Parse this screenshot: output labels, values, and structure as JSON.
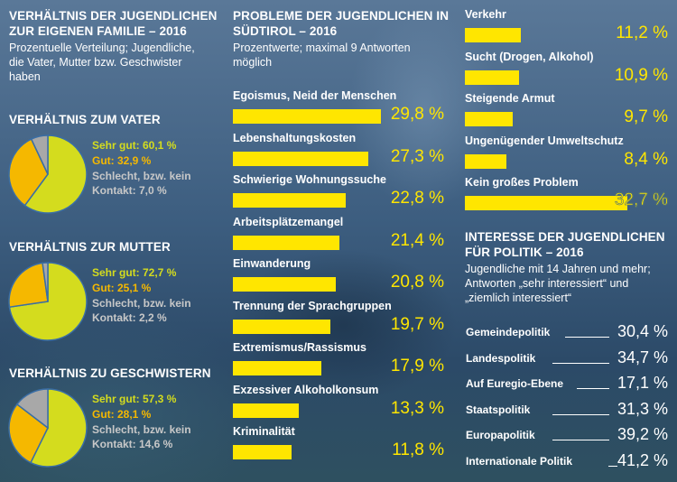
{
  "left": {
    "title": "VERHÄLTNIS DER JUGENDLICHEN ZUR EIGENEN FAMILIE – 2016",
    "subtitle": "Prozentuelle Verteilung; Jugendliche, die Vater, Mutter bzw. Geschwister haben"
  },
  "middle": {
    "title": "PROBLEME DER JUGENDLICHEN IN SÜDTIROL – 2016",
    "subtitle": "Prozentwerte; maximal 9 Antworten möglich"
  },
  "politik": {
    "title": "INTERESSE DER JUGENDLICHEN FÜR POLITIK – 2016",
    "subtitle": "Jugendliche mit 14 Jahren und mehr; Antworten „sehr interessiert“ und „ziemlich interessiert“"
  },
  "colors": {
    "yellow": "#ffe600",
    "pie_sehr_gut": "#d4dc1e",
    "pie_gut": "#f5b800",
    "pie_schlecht": "#a8a8a8",
    "pie_border": "#3a6ea5"
  },
  "chart_data": [
    {
      "type": "pie",
      "title": "VERHÄLTNIS ZUM VATER",
      "slices": [
        {
          "label": "Sehr gut: 60,1 %",
          "value": 60.1,
          "color": "#d4dc1e"
        },
        {
          "label": "Gut: 32,9 %",
          "value": 32.9,
          "color": "#f5b800"
        },
        {
          "label": "Schlecht, bzw. kein Kontakt: 7,0 %",
          "value": 7.0,
          "color": "#a8a8a8"
        }
      ]
    },
    {
      "type": "pie",
      "title": "VERHÄLTNIS ZUR MUTTER",
      "slices": [
        {
          "label": "Sehr gut: 72,7 %",
          "value": 72.7,
          "color": "#d4dc1e"
        },
        {
          "label": "Gut: 25,1 %",
          "value": 25.1,
          "color": "#f5b800"
        },
        {
          "label": "Schlecht, bzw. kein Kontakt: 2,2 %",
          "value": 2.2,
          "color": "#a8a8a8"
        }
      ]
    },
    {
      "type": "pie",
      "title": "VERHÄLTNIS ZU GESCHWISTERN",
      "slices": [
        {
          "label": "Sehr gut: 57,3 %",
          "value": 57.3,
          "color": "#d4dc1e"
        },
        {
          "label": "Gut: 28,1 %",
          "value": 28.1,
          "color": "#f5b800"
        },
        {
          "label": "Schlecht, bzw. kein Kontakt: 14,6 %",
          "value": 14.6,
          "color": "#a8a8a8"
        }
      ]
    },
    {
      "type": "bar",
      "title": "PROBLEME DER JUGENDLICHEN IN SÜDTIROL – 2016",
      "categories": [
        "Egoismus, Neid der Menschen",
        "Lebenshaltungskosten",
        "Schwierige Wohnungssuche",
        "Arbeitsplätzemangel",
        "Einwanderung",
        "Trennung der Sprachgruppen",
        "Extremismus/Rassismus",
        "Exzessiver Alkoholkonsum",
        "Kriminalität",
        "Verkehr",
        "Sucht (Drogen, Alkohol)",
        "Steigende Armut",
        "Ungenügender Umweltschutz",
        "Kein großes Problem"
      ],
      "values": [
        29.8,
        27.3,
        22.8,
        21.4,
        20.8,
        19.7,
        17.9,
        13.3,
        11.8,
        11.2,
        10.9,
        9.7,
        8.4,
        32.7
      ],
      "value_labels": [
        "29,8 %",
        "27,3 %",
        "22,8 %",
        "21,4 %",
        "20,8 %",
        "19,7 %",
        "17,9 %",
        "13,3 %",
        "11,8 %",
        "11,2 %",
        "10,9 %",
        "9,7 %",
        "8,4 %",
        "32,7 %"
      ]
    },
    {
      "type": "table",
      "title": "INTERESSE DER JUGENDLICHEN FÜR POLITIK – 2016",
      "categories": [
        "Gemeindepolitik",
        "Landespolitik",
        "Auf Euregio-Ebene",
        "Staatspolitik",
        "Europapolitik",
        "Internationale Politik"
      ],
      "values": [
        30.4,
        34.7,
        17.1,
        31.3,
        39.2,
        41.2
      ],
      "value_labels": [
        "30,4 %",
        "34,7 %",
        "17,1 %",
        "31,3 %",
        "39,2 %",
        "41,2 %"
      ]
    }
  ]
}
